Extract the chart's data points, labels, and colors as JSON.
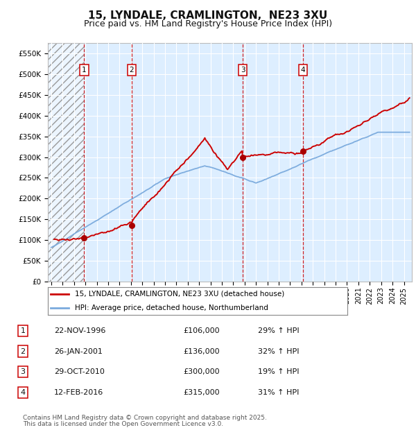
{
  "title": "15, LYNDALE, CRAMLINGTON,  NE23 3XU",
  "subtitle": "Price paid vs. HM Land Registry's House Price Index (HPI)",
  "title_fontsize": 11,
  "subtitle_fontsize": 9,
  "background_color": "#ffffff",
  "plot_bg_color": "#ddeeff",
  "grid_color": "#ffffff",
  "ylabel_ticks": [
    "£0",
    "£50K",
    "£100K",
    "£150K",
    "£200K",
    "£250K",
    "£300K",
    "£350K",
    "£400K",
    "£450K",
    "£500K",
    "£550K"
  ],
  "ytick_vals": [
    0,
    50000,
    100000,
    150000,
    200000,
    250000,
    300000,
    350000,
    400000,
    450000,
    500000,
    550000
  ],
  "ylim": [
    0,
    575000
  ],
  "xlim_start": 1993.7,
  "xlim_end": 2025.7,
  "red_line_color": "#cc0000",
  "blue_line_color": "#7aaadd",
  "marker_color": "#aa0000",
  "vline_color": "#cc0000",
  "transactions": [
    {
      "label": "1",
      "date_num": 1996.89,
      "price": 106000,
      "date_str": "22-NOV-1996",
      "pct": "29%",
      "dir": "↑"
    },
    {
      "label": "2",
      "date_num": 2001.07,
      "price": 136000,
      "date_str": "26-JAN-2001",
      "pct": "32%",
      "dir": "↑"
    },
    {
      "label": "3",
      "date_num": 2010.83,
      "price": 300000,
      "date_str": "29-OCT-2010",
      "pct": "19%",
      "dir": "↑"
    },
    {
      "label": "4",
      "date_num": 2016.12,
      "price": 315000,
      "date_str": "12-FEB-2016",
      "pct": "31%",
      "dir": "↑"
    }
  ],
  "legend_entries": [
    "15, LYNDALE, CRAMLINGTON, NE23 3XU (detached house)",
    "HPI: Average price, detached house, Northumberland"
  ],
  "footer1": "Contains HM Land Registry data © Crown copyright and database right 2025.",
  "footer2": "This data is licensed under the Open Government Licence v3.0."
}
